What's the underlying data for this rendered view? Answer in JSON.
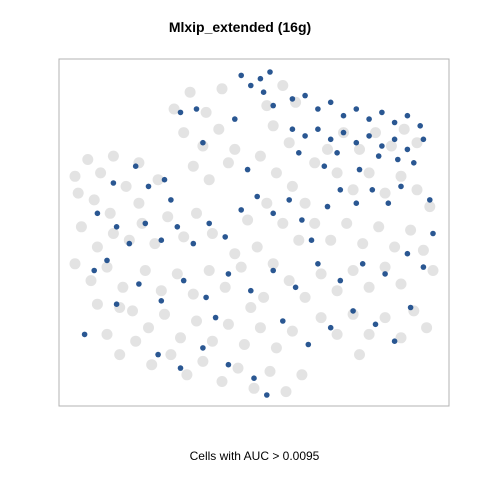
{
  "chart_data": {
    "type": "scatter",
    "title": "Mlxip_extended (16g)",
    "xlabel": "Cells with AUC > 0.0095",
    "ylabel": "",
    "axes_visible": false,
    "grid": false,
    "legend": "none",
    "colors": {
      "background_cells": "#d9d9d9",
      "high_auc_cells": "#1f4e8c",
      "mid_auc_cells": "#6d8cb8"
    },
    "series": [
      {
        "name": "",
        "color": "#d9d9d9",
        "role": "all cells",
        "points": [
          [
            -5.6,
            2.3
          ],
          [
            -5.2,
            2.8
          ],
          [
            -4.8,
            2.4
          ],
          [
            -4.4,
            2.9
          ],
          [
            -5.0,
            1.6
          ],
          [
            -4.5,
            1.2
          ],
          [
            -4.0,
            2.0
          ],
          [
            -3.6,
            1.5
          ],
          [
            -5.4,
            0.8
          ],
          [
            -4.9,
            0.2
          ],
          [
            -4.4,
            0.6
          ],
          [
            -3.9,
            0.4
          ],
          [
            -5.6,
            -0.3
          ],
          [
            -5.1,
            -0.8
          ],
          [
            -4.6,
            -0.4
          ],
          [
            -4.1,
            -1.0
          ],
          [
            -3.5,
            0.9
          ],
          [
            -3.1,
            0.3
          ],
          [
            -2.7,
            1.1
          ],
          [
            -2.2,
            0.5
          ],
          [
            -1.8,
            1.2
          ],
          [
            -1.3,
            0.6
          ],
          [
            -3.4,
            -0.5
          ],
          [
            -2.9,
            -1.1
          ],
          [
            -2.4,
            -0.6
          ],
          [
            -1.9,
            -1.2
          ],
          [
            -1.4,
            -0.5
          ],
          [
            -0.9,
            -1.0
          ],
          [
            -0.4,
            -0.4
          ],
          [
            -3.8,
            -1.7
          ],
          [
            -3.3,
            -2.2
          ],
          [
            -2.8,
            -1.8
          ],
          [
            -2.3,
            -2.5
          ],
          [
            -1.8,
            -2.0
          ],
          [
            -1.3,
            -2.6
          ],
          [
            -0.8,
            -2.1
          ],
          [
            -0.3,
            -2.7
          ],
          [
            0.2,
            -2.2
          ],
          [
            0.7,
            -2.8
          ],
          [
            1.2,
            -2.3
          ],
          [
            -4.6,
            -2.4
          ],
          [
            -4.2,
            -3.0
          ],
          [
            -3.7,
            -2.6
          ],
          [
            -3.2,
            -3.3
          ],
          [
            -2.6,
            -3.0
          ],
          [
            -2.1,
            -3.6
          ],
          [
            -1.6,
            -3.2
          ],
          [
            -1.0,
            -3.8
          ],
          [
            -0.5,
            -3.4
          ],
          [
            0.0,
            -4.0
          ],
          [
            0.5,
            -3.5
          ],
          [
            1.0,
            -4.1
          ],
          [
            1.5,
            -3.6
          ],
          [
            -2.5,
            4.3
          ],
          [
            -2.0,
            4.8
          ],
          [
            -1.5,
            4.2
          ],
          [
            -1.0,
            4.9
          ],
          [
            -2.2,
            3.6
          ],
          [
            -1.6,
            3.2
          ],
          [
            -1.1,
            3.7
          ],
          [
            -0.6,
            3.1
          ],
          [
            -1.9,
            2.6
          ],
          [
            -1.4,
            2.2
          ],
          [
            -0.8,
            2.7
          ],
          [
            0.4,
            4.4
          ],
          [
            0.9,
            5.0
          ],
          [
            1.3,
            4.5
          ],
          [
            0.6,
            3.8
          ],
          [
            1.1,
            3.3
          ],
          [
            0.2,
            2.9
          ],
          [
            0.7,
            2.4
          ],
          [
            1.2,
            2.0
          ],
          [
            1.6,
            1.5
          ],
          [
            0.4,
            1.5
          ],
          [
            0.9,
            0.9
          ],
          [
            1.4,
            0.4
          ],
          [
            1.9,
            0.9
          ],
          [
            0.1,
            0.2
          ],
          [
            0.6,
            -0.3
          ],
          [
            1.1,
            -0.8
          ],
          [
            1.6,
            -1.3
          ],
          [
            2.1,
            -0.6
          ],
          [
            2.6,
            -1.1
          ],
          [
            3.1,
            -0.5
          ],
          [
            3.6,
            -1.0
          ],
          [
            4.1,
            -0.4
          ],
          [
            4.6,
            -0.9
          ],
          [
            2.4,
            0.4
          ],
          [
            2.9,
            0.9
          ],
          [
            3.4,
            0.3
          ],
          [
            3.9,
            0.8
          ],
          [
            4.4,
            0.2
          ],
          [
            4.9,
            0.7
          ],
          [
            5.3,
            0.1
          ],
          [
            5.6,
            -0.5
          ],
          [
            2.1,
            -1.9
          ],
          [
            2.6,
            -2.4
          ],
          [
            3.1,
            -1.8
          ],
          [
            3.6,
            -2.4
          ],
          [
            4.1,
            -1.9
          ],
          [
            4.6,
            -2.5
          ],
          [
            5.0,
            -1.7
          ],
          [
            5.4,
            -2.2
          ],
          [
            2.3,
            3.1
          ],
          [
            2.8,
            3.6
          ],
          [
            3.3,
            3.1
          ],
          [
            3.8,
            3.6
          ],
          [
            4.3,
            3.2
          ],
          [
            4.7,
            3.7
          ],
          [
            5.1,
            3.3
          ],
          [
            2.6,
            2.4
          ],
          [
            3.1,
            1.9
          ],
          [
            3.6,
            2.4
          ],
          [
            4.1,
            1.8
          ],
          [
            4.6,
            2.3
          ],
          [
            5.1,
            1.9
          ],
          [
            5.5,
            1.4
          ],
          [
            -0.2,
            1.0
          ],
          [
            -0.6,
            0.0
          ],
          [
            0.3,
            -1.3
          ],
          [
            -0.1,
            -1.6
          ],
          [
            1.9,
            2.7
          ],
          [
            -3.0,
            2.2
          ],
          [
            -3.6,
            2.7
          ],
          [
            -4.9,
            -1.5
          ],
          [
            -5.5,
            1.8
          ],
          [
            -4.2,
            -1.6
          ],
          [
            3.3,
            -3.0
          ]
        ]
      },
      {
        "name": "",
        "color": "#1f4e8c",
        "role": "cells with AUC > 0.0095",
        "points": [
          [
            -0.4,
            5.3
          ],
          [
            -0.1,
            5.0
          ],
          [
            0.2,
            5.2
          ],
          [
            0.5,
            5.4
          ],
          [
            0.3,
            4.8
          ],
          [
            0.6,
            4.4
          ],
          [
            -2.3,
            4.2
          ],
          [
            -1.8,
            4.3
          ],
          [
            -0.6,
            4.0
          ],
          [
            1.2,
            4.6
          ],
          [
            1.6,
            4.7
          ],
          [
            2.0,
            4.3
          ],
          [
            2.4,
            4.5
          ],
          [
            2.8,
            4.1
          ],
          [
            3.2,
            4.3
          ],
          [
            3.6,
            4.0
          ],
          [
            4.0,
            4.2
          ],
          [
            4.4,
            3.9
          ],
          [
            4.8,
            4.1
          ],
          [
            5.2,
            3.8
          ],
          [
            1.2,
            3.7
          ],
          [
            1.6,
            3.5
          ],
          [
            2.0,
            3.7
          ],
          [
            2.4,
            3.4
          ],
          [
            2.8,
            3.6
          ],
          [
            3.2,
            3.3
          ],
          [
            3.6,
            3.5
          ],
          [
            4.0,
            3.2
          ],
          [
            4.4,
            3.4
          ],
          [
            4.8,
            3.1
          ],
          [
            5.3,
            3.4
          ],
          [
            1.4,
            3.0
          ],
          [
            2.6,
            3.0
          ],
          [
            3.9,
            2.9
          ],
          [
            4.5,
            2.8
          ],
          [
            5.0,
            2.7
          ],
          [
            -4.4,
            2.1
          ],
          [
            -3.7,
            2.6
          ],
          [
            -3.3,
            2.0
          ],
          [
            -2.8,
            2.2
          ],
          [
            -4.9,
            1.2
          ],
          [
            -4.3,
            0.8
          ],
          [
            -3.9,
            0.3
          ],
          [
            -3.4,
            0.9
          ],
          [
            -2.9,
            0.4
          ],
          [
            -2.4,
            0.8
          ],
          [
            -1.9,
            0.3
          ],
          [
            -1.4,
            0.9
          ],
          [
            -0.9,
            0.5
          ],
          [
            -0.4,
            1.3
          ],
          [
            0.1,
            1.7
          ],
          [
            0.6,
            1.2
          ],
          [
            1.1,
            1.6
          ],
          [
            1.5,
            1.0
          ],
          [
            2.3,
            1.4
          ],
          [
            2.7,
            1.9
          ],
          [
            3.2,
            1.5
          ],
          [
            3.7,
            1.9
          ],
          [
            4.2,
            1.5
          ],
          [
            4.6,
            2.0
          ],
          [
            5.6,
            0.6
          ],
          [
            5.3,
            -0.4
          ],
          [
            4.8,
            0.0
          ],
          [
            4.1,
            -0.6
          ],
          [
            3.4,
            -0.3
          ],
          [
            2.7,
            -0.8
          ],
          [
            2.0,
            -0.3
          ],
          [
            1.3,
            -1.0
          ],
          [
            0.6,
            -0.5
          ],
          [
            -0.1,
            -1.1
          ],
          [
            -0.8,
            -0.6
          ],
          [
            -1.5,
            -1.3
          ],
          [
            -2.2,
            -0.8
          ],
          [
            -2.9,
            -1.4
          ],
          [
            -3.6,
            -0.9
          ],
          [
            -4.3,
            -1.5
          ],
          [
            -5.0,
            -0.5
          ],
          [
            -5.3,
            -2.4
          ],
          [
            -3.0,
            -3.0
          ],
          [
            -2.3,
            -3.4
          ],
          [
            -1.6,
            -2.8
          ],
          [
            -0.8,
            -3.3
          ],
          [
            0.0,
            -3.7
          ],
          [
            0.4,
            -4.2
          ],
          [
            1.7,
            -2.7
          ],
          [
            2.4,
            -2.2
          ],
          [
            3.1,
            -1.7
          ],
          [
            3.8,
            -2.1
          ],
          [
            4.4,
            -2.6
          ],
          [
            4.9,
            -1.6
          ],
          [
            -1.2,
            -1.9
          ],
          [
            0.9,
            -2.0
          ],
          [
            1.8,
            0.4
          ],
          [
            -2.6,
            1.6
          ],
          [
            -1.6,
            3.3
          ],
          [
            -0.2,
            2.5
          ],
          [
            2.2,
            2.6
          ],
          [
            3.3,
            2.5
          ],
          [
            5.5,
            1.6
          ],
          [
            -4.6,
            -0.2
          ]
        ]
      }
    ]
  }
}
